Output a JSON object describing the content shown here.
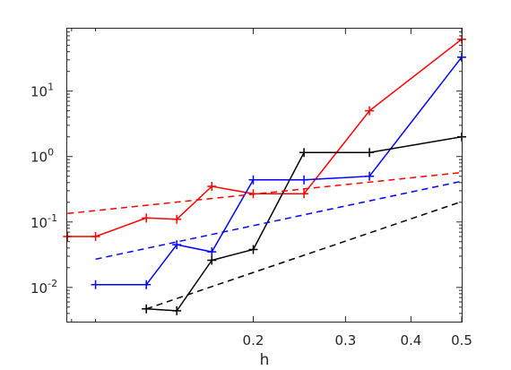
{
  "chart_data": {
    "type": "line",
    "title": "",
    "xlabel": "h",
    "ylabel": "",
    "xscale": "log",
    "yscale": "log",
    "xlim": [
      0.0883,
      0.5
    ],
    "ylim": [
      0.003,
      90
    ],
    "grid": false,
    "x_ticks": [
      {
        "value": 0.2,
        "label": "0.2"
      },
      {
        "value": 0.3,
        "label": "0.3"
      },
      {
        "value": 0.4,
        "label": "0.4"
      },
      {
        "value": 0.5,
        "label": "0.5"
      }
    ],
    "y_ticks": [
      {
        "value": 0.01,
        "base": "10",
        "exp": "-2"
      },
      {
        "value": 0.1,
        "base": "10",
        "exp": "-1"
      },
      {
        "value": 1,
        "base": "10",
        "exp": "0"
      },
      {
        "value": 10,
        "base": "10",
        "exp": "1"
      }
    ],
    "series": [
      {
        "color": "#ff0000",
        "style": "solid",
        "marker": "+",
        "x": [
          0.0884,
          0.1,
          0.125,
          0.1429,
          0.1667,
          0.2,
          0.25,
          0.3333,
          0.5
        ],
        "y": [
          0.06,
          0.06,
          0.115,
          0.11,
          0.35,
          0.27,
          0.27,
          5.0,
          62
        ]
      },
      {
        "color": "#0000ff",
        "style": "solid",
        "marker": "+",
        "x": [
          0.1,
          0.125,
          0.1429,
          0.1667,
          0.2,
          0.25,
          0.3333,
          0.5
        ],
        "y": [
          0.011,
          0.011,
          0.045,
          0.035,
          0.44,
          0.44,
          0.5,
          33
        ]
      },
      {
        "color": "#000000",
        "style": "solid",
        "marker": "+",
        "x": [
          0.125,
          0.1429,
          0.1667,
          0.2,
          0.25,
          0.3333,
          0.5
        ],
        "y": [
          0.0047,
          0.0044,
          0.026,
          0.038,
          1.15,
          1.15,
          2.0
        ]
      },
      {
        "color": "#ff0000",
        "style": "dashed",
        "marker": "none",
        "x": [
          0.0884,
          0.5
        ],
        "y": [
          0.135,
          0.57
        ]
      },
      {
        "color": "#0000ff",
        "style": "dashed",
        "marker": "none",
        "x": [
          0.1,
          0.5
        ],
        "y": [
          0.027,
          0.42
        ]
      },
      {
        "color": "#000000",
        "style": "dashed",
        "marker": "none",
        "x": [
          0.125,
          0.5
        ],
        "y": [
          0.0047,
          0.205
        ]
      }
    ]
  }
}
